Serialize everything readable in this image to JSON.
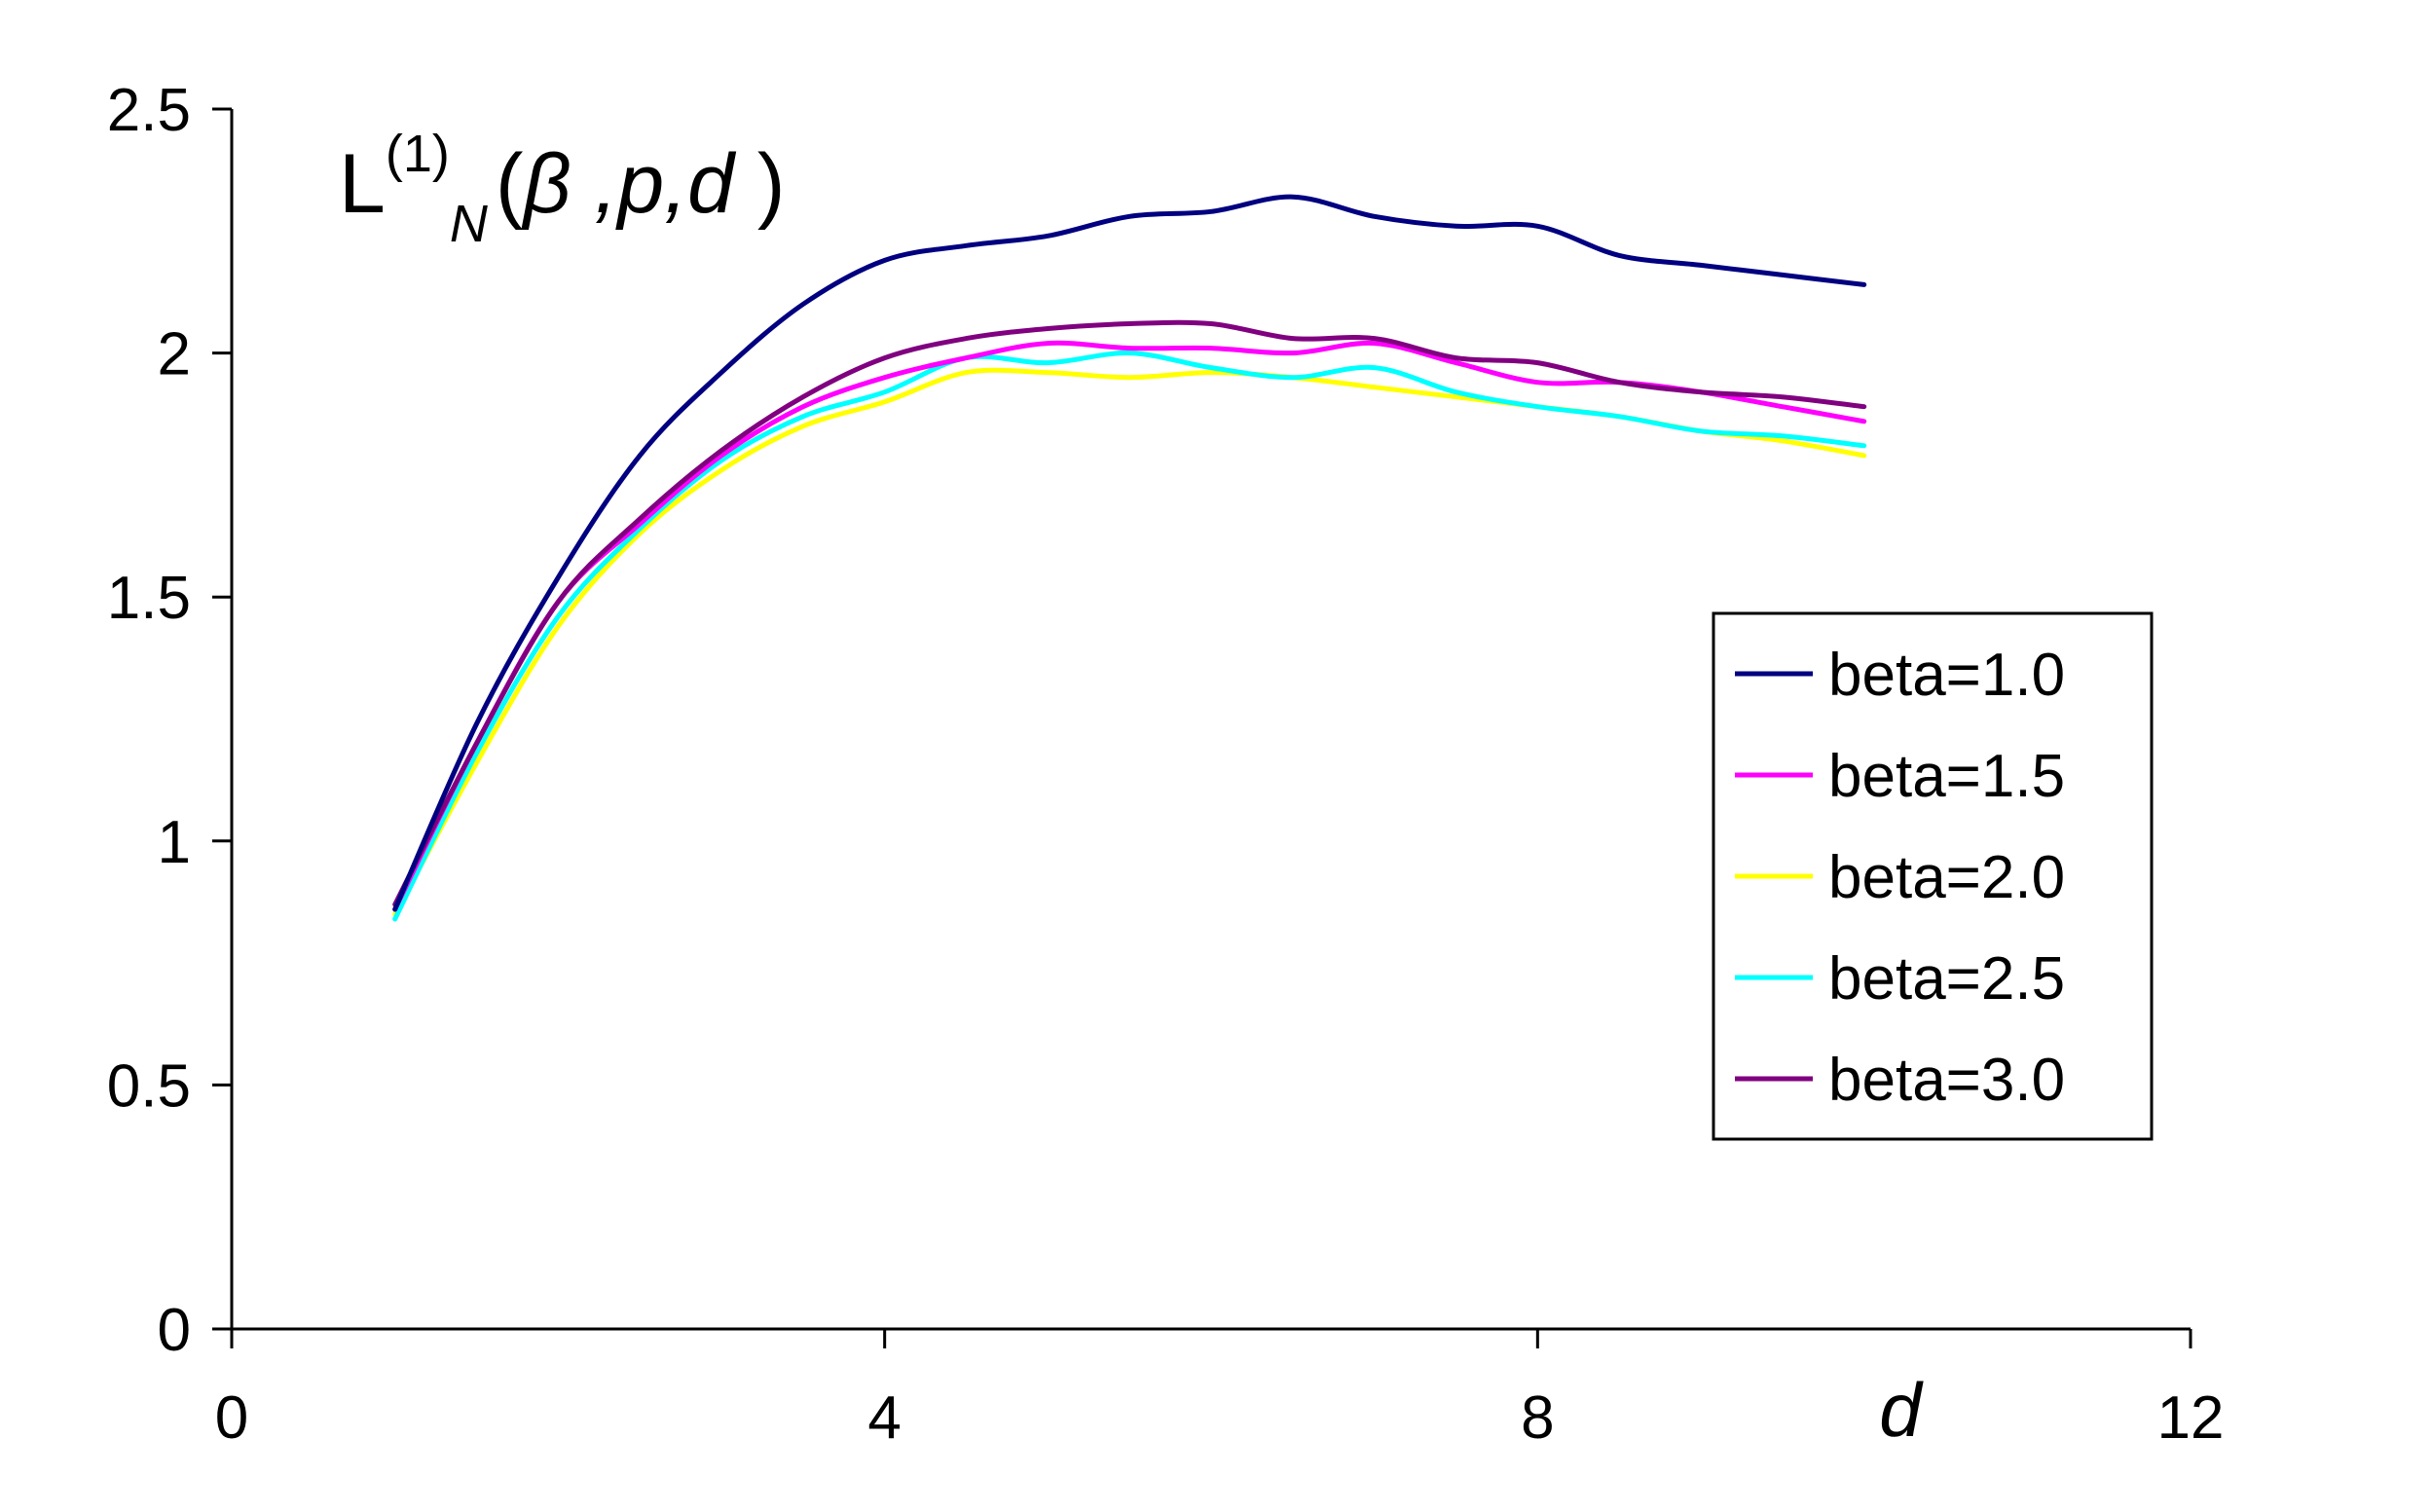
{
  "chart_data": {
    "type": "line",
    "title": {
      "main": "L",
      "superscript": "(1)",
      "subscript": "N",
      "open": "(",
      "beta": "β",
      "args": " ,p,d ",
      "close": ")"
    },
    "xlabel": "d",
    "ylabel": "",
    "xlim": [
      0,
      12
    ],
    "ylim": [
      0,
      2.5
    ],
    "x_ticks": [
      "0",
      "4",
      "8",
      "12"
    ],
    "y_ticks": [
      "0",
      "0.5",
      "1",
      "1.5",
      "2",
      "2.5"
    ],
    "grid": false,
    "legend_position": "right",
    "x": [
      1,
      1.5,
      2,
      2.5,
      3,
      3.5,
      4,
      4.5,
      5,
      5.5,
      6,
      6.5,
      7,
      7.5,
      8,
      8.5,
      9,
      9.5,
      10
    ],
    "series": [
      {
        "name": "beta=1.0",
        "color": "#000080",
        "values": [
          0.86,
          1.24,
          1.54,
          1.79,
          1.96,
          2.1,
          2.19,
          2.22,
          2.24,
          2.28,
          2.29,
          2.32,
          2.28,
          2.26,
          2.26,
          2.2,
          2.18,
          2.16,
          2.14
        ]
      },
      {
        "name": "beta=1.5",
        "color": "#ff00ff",
        "values": [
          0.86,
          1.2,
          1.49,
          1.65,
          1.79,
          1.89,
          1.95,
          1.99,
          2.02,
          2.01,
          2.01,
          2.0,
          2.02,
          1.98,
          1.94,
          1.94,
          1.92,
          1.89,
          1.86
        ]
      },
      {
        "name": "beta=2.0",
        "color": "#ffff00",
        "values": [
          0.85,
          1.16,
          1.44,
          1.63,
          1.76,
          1.85,
          1.9,
          1.96,
          1.96,
          1.95,
          1.96,
          1.95,
          1.93,
          1.91,
          1.89,
          1.87,
          1.84,
          1.82,
          1.79
        ]
      },
      {
        "name": "beta=2.5",
        "color": "#00ffff",
        "values": [
          0.84,
          1.18,
          1.46,
          1.64,
          1.78,
          1.87,
          1.92,
          1.99,
          1.98,
          2.0,
          1.97,
          1.95,
          1.97,
          1.92,
          1.89,
          1.87,
          1.84,
          1.83,
          1.81
        ]
      },
      {
        "name": "beta=3.0",
        "color": "#800080",
        "values": [
          0.87,
          1.2,
          1.49,
          1.66,
          1.8,
          1.91,
          1.99,
          2.03,
          2.05,
          2.06,
          2.06,
          2.03,
          2.03,
          1.99,
          1.98,
          1.94,
          1.92,
          1.91,
          1.89
        ]
      }
    ]
  }
}
